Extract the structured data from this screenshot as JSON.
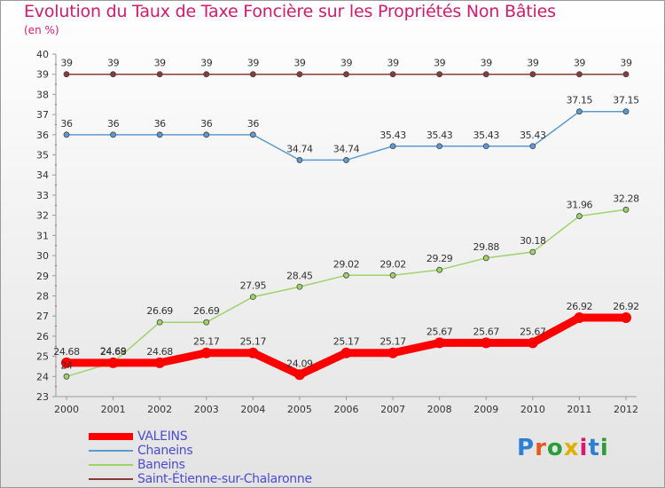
{
  "title": "Evolution du Taux de Taxe Foncière sur les Propriétés Non Bâties",
  "unit": "(en %)",
  "logo": "Proxiti",
  "chart_data": {
    "type": "line",
    "title": "Evolution du Taux de Taxe Foncière sur les Propriétés Non Bâties",
    "ylabel": "(en %)",
    "xlabel": "",
    "x": [
      "2000",
      "2001",
      "2002",
      "2003",
      "2004",
      "2005",
      "2006",
      "2007",
      "2008",
      "2009",
      "2010",
      "2011",
      "2012"
    ],
    "ylim": [
      23,
      40
    ],
    "yticks": [
      23,
      24,
      25,
      26,
      27,
      28,
      29,
      30,
      31,
      32,
      33,
      34,
      35,
      36,
      37,
      38,
      39,
      40
    ],
    "grid": false,
    "legend_position": "bottom-left",
    "series": [
      {
        "name": "VALEINS",
        "color": "#ff0000",
        "values": [
          24.68,
          24.68,
          24.68,
          25.17,
          25.17,
          24.09,
          25.17,
          25.17,
          25.67,
          25.67,
          25.67,
          26.92,
          26.92
        ],
        "labels": [
          "24.68",
          "24.68",
          "24.68",
          "25.17",
          "25.17",
          "24.09",
          "25.17",
          "25.17",
          "25.67",
          "25.67",
          "25.67",
          "26.92",
          "26.92"
        ]
      },
      {
        "name": "Chaneins",
        "color": "#5b9bd5",
        "values": [
          36,
          36,
          36,
          36,
          36,
          34.74,
          34.74,
          35.43,
          35.43,
          35.43,
          35.43,
          37.15,
          37.15
        ],
        "labels": [
          "36",
          "36",
          "36",
          "36",
          "36",
          "34.74",
          "34.74",
          "35.43",
          "35.43",
          "35.43",
          "35.43",
          "37.15",
          "37.15"
        ]
      },
      {
        "name": "Baneins",
        "color": "#9ed36a",
        "values": [
          24,
          24.69,
          26.69,
          26.69,
          27.95,
          28.45,
          29.02,
          29.02,
          29.29,
          29.88,
          30.18,
          31.96,
          32.28
        ],
        "labels": [
          "24",
          "24.69",
          "26.69",
          "26.69",
          "27.95",
          "28.45",
          "29.02",
          "29.02",
          "29.29",
          "29.88",
          "30.18",
          "31.96",
          "32.28"
        ]
      },
      {
        "name": "Saint-Étienne-sur-Chalaronne",
        "color": "#8b3a3a",
        "values": [
          39,
          39,
          39,
          39,
          39,
          39,
          39,
          39,
          39,
          39,
          39,
          39,
          39
        ],
        "labels": [
          "39",
          "39",
          "39",
          "39",
          "39",
          "39",
          "39",
          "39",
          "39",
          "39",
          "39",
          "39",
          "39"
        ]
      }
    ]
  }
}
